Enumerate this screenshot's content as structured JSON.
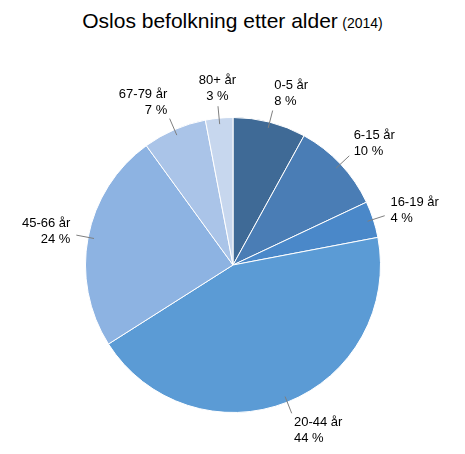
{
  "chart_data": {
    "type": "pie",
    "title": "Oslos befolkning etter alder",
    "subtitle": "(2014)",
    "categories": [
      "0-5 år",
      "6-15 år",
      "16-19 år",
      "20-44 år",
      "45-66 år",
      "67-79 år",
      "80+ år"
    ],
    "values": [
      8,
      10,
      4,
      44,
      24,
      7,
      3
    ],
    "value_labels": [
      "8 %",
      "10 %",
      "4 %",
      "44 %",
      "24 %",
      "7 %",
      "3 %"
    ],
    "colors": [
      "#3f6a96",
      "#4a7db5",
      "#4a88c9",
      "#5b9bd5",
      "#8db3e2",
      "#aac4e8",
      "#c7d7ee"
    ],
    "data_labels": true
  }
}
